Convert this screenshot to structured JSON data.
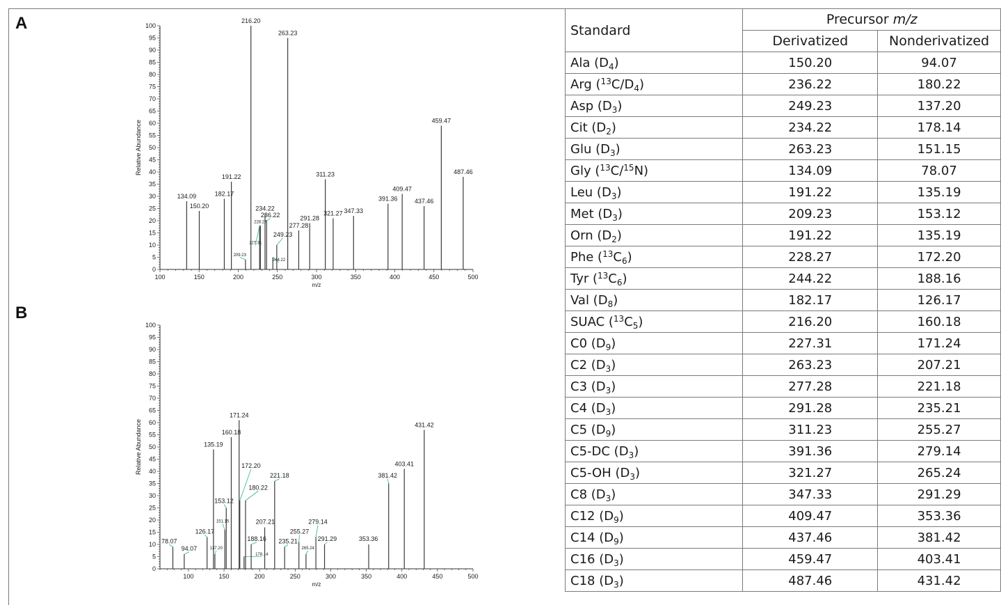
{
  "panels": {
    "a_label": "A",
    "b_label": "B"
  },
  "chart_data": [
    {
      "type": "bar",
      "panel": "A",
      "xlabel": "m/z",
      "ylabel": "Relative Abundance",
      "xlim": [
        100,
        500
      ],
      "ylim": [
        0,
        100
      ],
      "xticks": [
        100,
        150,
        200,
        250,
        300,
        350,
        400,
        450,
        500
      ],
      "yticks": [
        0,
        5,
        10,
        15,
        20,
        25,
        30,
        35,
        40,
        45,
        50,
        55,
        60,
        65,
        70,
        75,
        80,
        85,
        90,
        95,
        100
      ],
      "peaks": [
        {
          "mz": 134.09,
          "intensity": 28,
          "label": "134.09"
        },
        {
          "mz": 150.2,
          "intensity": 24,
          "label": "150.20"
        },
        {
          "mz": 182.17,
          "intensity": 29,
          "label": "182.17"
        },
        {
          "mz": 191.22,
          "intensity": 36,
          "label": "191.22"
        },
        {
          "mz": 209.23,
          "intensity": 4,
          "label": "209.23",
          "small": true,
          "lx": 202,
          "ly": 5.5
        },
        {
          "mz": 216.2,
          "intensity": 100,
          "label": "216.20"
        },
        {
          "mz": 227.31,
          "intensity": 18,
          "label": "227.31",
          "small": true,
          "lx": 222,
          "ly": 10.5
        },
        {
          "mz": 228.27,
          "intensity": 18,
          "label": "228.27",
          "small": true,
          "lx": 228.27,
          "ly": 19
        },
        {
          "mz": 234.22,
          "intensity": 23,
          "label": "234.22"
        },
        {
          "mz": 236.22,
          "intensity": 20,
          "label": "236.22",
          "lx": 241,
          "ly": 21.5
        },
        {
          "mz": 244.22,
          "intensity": 5,
          "label": "244.22",
          "small": true,
          "lx": 252,
          "ly": 3.5
        },
        {
          "mz": 249.23,
          "intensity": 10,
          "label": "249.23",
          "lx": 257,
          "ly": 13.5
        },
        {
          "mz": 263.23,
          "intensity": 95,
          "label": "263.23"
        },
        {
          "mz": 277.28,
          "intensity": 16,
          "label": "277.28"
        },
        {
          "mz": 291.28,
          "intensity": 19,
          "label": "291.28"
        },
        {
          "mz": 311.23,
          "intensity": 37,
          "label": "311.23"
        },
        {
          "mz": 321.27,
          "intensity": 21,
          "label": "321.27"
        },
        {
          "mz": 347.33,
          "intensity": 22,
          "label": "347.33"
        },
        {
          "mz": 391.36,
          "intensity": 27,
          "label": "391.36"
        },
        {
          "mz": 409.47,
          "intensity": 31,
          "label": "409.47"
        },
        {
          "mz": 437.46,
          "intensity": 26,
          "label": "437.46"
        },
        {
          "mz": 459.47,
          "intensity": 59,
          "label": "459.47"
        },
        {
          "mz": 487.46,
          "intensity": 38,
          "label": "487.46"
        }
      ]
    },
    {
      "type": "bar",
      "panel": "B",
      "xlabel": "m/z",
      "ylabel": "Relative Abundance",
      "xlim": [
        60,
        500
      ],
      "ylim": [
        0,
        100
      ],
      "xticks": [
        100,
        150,
        200,
        250,
        300,
        350,
        400,
        450,
        500
      ],
      "yticks": [
        0,
        5,
        10,
        15,
        20,
        25,
        30,
        35,
        40,
        45,
        50,
        55,
        60,
        65,
        70,
        75,
        80,
        85,
        90,
        95,
        100
      ],
      "peaks": [
        {
          "mz": 78.07,
          "intensity": 9,
          "label": "78.07",
          "lx": 73,
          "ly": 10.5
        },
        {
          "mz": 94.07,
          "intensity": 6,
          "label": "94.07",
          "lx": 101,
          "ly": 7.5
        },
        {
          "mz": 126.17,
          "intensity": 13,
          "label": "126.17",
          "lx": 123,
          "ly": 14.5
        },
        {
          "mz": 135.19,
          "intensity": 49,
          "label": "135.19"
        },
        {
          "mz": 137.2,
          "intensity": 6,
          "label": "137.20",
          "small": true,
          "lx": 139,
          "ly": 8
        },
        {
          "mz": 151.15,
          "intensity": 16,
          "label": "151.15",
          "small": true,
          "lx": 148,
          "ly": 19
        },
        {
          "mz": 153.12,
          "intensity": 25,
          "label": "153.12",
          "lx": 150,
          "ly": 27
        },
        {
          "mz": 160.18,
          "intensity": 54,
          "label": "160.18"
        },
        {
          "mz": 171.24,
          "intensity": 61,
          "label": "171.24"
        },
        {
          "mz": 172.2,
          "intensity": 28,
          "label": "172.20",
          "lx": 188,
          "ly": 41.5
        },
        {
          "mz": 178.14,
          "intensity": 5,
          "label": "178.14",
          "small": true,
          "lx": 203,
          "ly": 5.5
        },
        {
          "mz": 180.22,
          "intensity": 28,
          "label": "180.22",
          "lx": 198,
          "ly": 32.5
        },
        {
          "mz": 188.16,
          "intensity": 10,
          "label": "188.16",
          "lx": 196,
          "ly": 11.5
        },
        {
          "mz": 207.21,
          "intensity": 17,
          "label": "207.21",
          "lx": 208,
          "ly": 18.5
        },
        {
          "mz": 221.18,
          "intensity": 36,
          "label": "221.18",
          "lx": 228,
          "ly": 37.5
        },
        {
          "mz": 235.21,
          "intensity": 9,
          "label": "235.21",
          "lx": 240,
          "ly": 10.5
        },
        {
          "mz": 255.27,
          "intensity": 11,
          "label": "255.27",
          "lx": 256,
          "ly": 14.5
        },
        {
          "mz": 265.24,
          "intensity": 6,
          "label": "265.24",
          "small": true,
          "lx": 268,
          "ly": 8
        },
        {
          "mz": 279.14,
          "intensity": 13,
          "label": "279.14",
          "lx": 282,
          "ly": 18.5
        },
        {
          "mz": 291.29,
          "intensity": 10,
          "label": "291.29",
          "lx": 295,
          "ly": 11.5
        },
        {
          "mz": 353.36,
          "intensity": 10,
          "label": "353.36",
          "lx": 353,
          "ly": 11.5
        },
        {
          "mz": 381.42,
          "intensity": 35,
          "label": "381.42",
          "lx": 380,
          "ly": 37.5
        },
        {
          "mz": 403.41,
          "intensity": 41,
          "label": "403.41"
        },
        {
          "mz": 431.42,
          "intensity": 57,
          "label": "431.42"
        }
      ]
    }
  ],
  "table": {
    "header": {
      "standard": "Standard",
      "precursor_prefix": "Precursor ",
      "precursor_unit": "m/z",
      "derivatized": "Derivatized",
      "nonderivatized": "Nonderivatized"
    },
    "rows": [
      {
        "name": "Ala (",
        "iso": [
          {
            "t": "D"
          },
          {
            "sub": "4"
          }
        ],
        "close": ")",
        "der": "150.20",
        "non": "94.07"
      },
      {
        "name": "Arg (",
        "iso": [
          {
            "sup": "13"
          },
          {
            "t": "C/D"
          },
          {
            "sub": "4"
          }
        ],
        "close": ")",
        "der": "236.22",
        "non": "180.22"
      },
      {
        "name": "Asp (",
        "iso": [
          {
            "t": "D"
          },
          {
            "sub": "3"
          }
        ],
        "close": ")",
        "der": "249.23",
        "non": "137.20"
      },
      {
        "name": "Cit (",
        "iso": [
          {
            "t": "D"
          },
          {
            "sub": "2"
          }
        ],
        "close": ")",
        "der": "234.22",
        "non": "178.14"
      },
      {
        "name": "Glu (",
        "iso": [
          {
            "t": "D"
          },
          {
            "sub": "3"
          }
        ],
        "close": ")",
        "der": "263.23",
        "non": "151.15"
      },
      {
        "name": "Gly (",
        "iso": [
          {
            "sup": "13"
          },
          {
            "t": "C/"
          },
          {
            "sup": "15"
          },
          {
            "t": "N"
          }
        ],
        "close": ")",
        "der": "134.09",
        "non": "78.07"
      },
      {
        "name": "Leu (",
        "iso": [
          {
            "t": "D"
          },
          {
            "sub": "3"
          }
        ],
        "close": ")",
        "der": "191.22",
        "non": "135.19"
      },
      {
        "name": "Met (",
        "iso": [
          {
            "t": "D"
          },
          {
            "sub": "3"
          }
        ],
        "close": ")",
        "der": "209.23",
        "non": "153.12"
      },
      {
        "name": "Orn (",
        "iso": [
          {
            "t": "D"
          },
          {
            "sub": "2"
          }
        ],
        "close": ")",
        "der": "191.22",
        "non": "135.19"
      },
      {
        "name": "Phe (",
        "iso": [
          {
            "sup": "13"
          },
          {
            "t": "C"
          },
          {
            "sub": "6"
          }
        ],
        "close": ")",
        "der": "228.27",
        "non": "172.20"
      },
      {
        "name": "Tyr (",
        "iso": [
          {
            "sup": "13"
          },
          {
            "t": "C"
          },
          {
            "sub": "6"
          }
        ],
        "close": ")",
        "der": "244.22",
        "non": "188.16"
      },
      {
        "name": "Val (",
        "iso": [
          {
            "t": "D"
          },
          {
            "sub": "8"
          }
        ],
        "close": ")",
        "der": "182.17",
        "non": "126.17"
      },
      {
        "name": "SUAC (",
        "iso": [
          {
            "sup": "13"
          },
          {
            "t": "C"
          },
          {
            "sub": "5"
          }
        ],
        "close": ")",
        "der": "216.20",
        "non": "160.18"
      },
      {
        "name": "C0 (",
        "iso": [
          {
            "t": "D"
          },
          {
            "sub": "9"
          }
        ],
        "close": ")",
        "der": "227.31",
        "non": "171.24"
      },
      {
        "name": "C2 (",
        "iso": [
          {
            "t": "D"
          },
          {
            "sub": "3"
          }
        ],
        "close": ")",
        "der": "263.23",
        "non": "207.21"
      },
      {
        "name": "C3 (",
        "iso": [
          {
            "t": "D"
          },
          {
            "sub": "3"
          }
        ],
        "close": ")",
        "der": "277.28",
        "non": "221.18"
      },
      {
        "name": "C4 (",
        "iso": [
          {
            "t": "D"
          },
          {
            "sub": "3"
          }
        ],
        "close": ")",
        "der": "291.28",
        "non": "235.21"
      },
      {
        "name": "C5 (",
        "iso": [
          {
            "t": "D"
          },
          {
            "sub": "9"
          }
        ],
        "close": ")",
        "der": "311.23",
        "non": "255.27"
      },
      {
        "name": "C5-DC (",
        "iso": [
          {
            "t": "D"
          },
          {
            "sub": "3"
          }
        ],
        "close": ")",
        "der": "391.36",
        "non": "279.14"
      },
      {
        "name": "C5-OH (",
        "iso": [
          {
            "t": "D"
          },
          {
            "sub": "3"
          }
        ],
        "close": ")",
        "der": "321.27",
        "non": "265.24"
      },
      {
        "name": "C8 (",
        "iso": [
          {
            "t": "D"
          },
          {
            "sub": "3"
          }
        ],
        "close": ")",
        "der": "347.33",
        "non": "291.29"
      },
      {
        "name": "C12 (",
        "iso": [
          {
            "t": "D"
          },
          {
            "sub": "9"
          }
        ],
        "close": ")",
        "der": "409.47",
        "non": "353.36"
      },
      {
        "name": "C14 (",
        "iso": [
          {
            "t": "D"
          },
          {
            "sub": "9"
          }
        ],
        "close": ")",
        "der": "437.46",
        "non": "381.42"
      },
      {
        "name": "C16 (",
        "iso": [
          {
            "t": "D"
          },
          {
            "sub": "3"
          }
        ],
        "close": ")",
        "der": "459.47",
        "non": "403.41"
      },
      {
        "name": "C18 (",
        "iso": [
          {
            "t": "D"
          },
          {
            "sub": "3"
          }
        ],
        "close": ")",
        "der": "487.46",
        "non": "431.42"
      }
    ]
  },
  "colors": {
    "bar": "#3a3a3a",
    "leader": "#2bb58f",
    "axis": "#333333",
    "grid_line": "#7a7a7a"
  }
}
